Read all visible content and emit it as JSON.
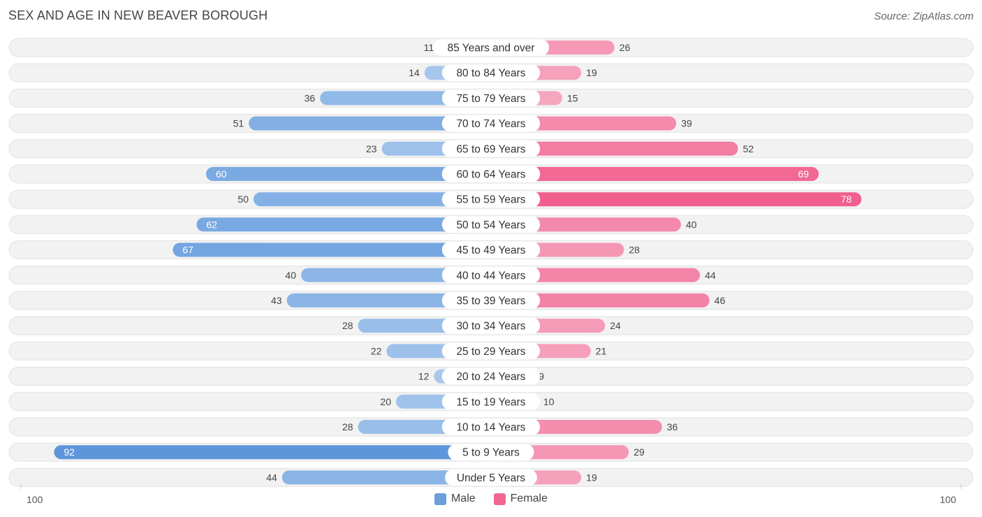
{
  "title": "SEX AND AGE IN NEW BEAVER BOROUGH",
  "source": "Source: ZipAtlas.com",
  "colors": {
    "male": "#6a9fdc",
    "female": "#f06792",
    "track": "#f1f1f1"
  },
  "chart_data": {
    "type": "bar",
    "orientation": "horizontal-diverging",
    "title": "SEX AND AGE IN NEW BEAVER BOROUGH",
    "categories": [
      "85 Years and over",
      "80 to 84 Years",
      "75 to 79 Years",
      "70 to 74 Years",
      "65 to 69 Years",
      "60 to 64 Years",
      "55 to 59 Years",
      "50 to 54 Years",
      "45 to 49 Years",
      "40 to 44 Years",
      "35 to 39 Years",
      "30 to 34 Years",
      "25 to 29 Years",
      "20 to 24 Years",
      "15 to 19 Years",
      "10 to 14 Years",
      "5 to 9 Years",
      "Under 5 Years"
    ],
    "series": [
      {
        "name": "Male",
        "values": [
          11,
          14,
          36,
          51,
          23,
          60,
          50,
          62,
          67,
          40,
          43,
          28,
          22,
          12,
          20,
          28,
          92,
          44
        ]
      },
      {
        "name": "Female",
        "values": [
          26,
          19,
          15,
          39,
          52,
          69,
          78,
          40,
          28,
          44,
          46,
          24,
          21,
          9,
          10,
          36,
          29,
          19
        ]
      }
    ],
    "xlim": [
      -100,
      100
    ],
    "axis_left_label": "100",
    "axis_right_label": "100",
    "legend": [
      "Male",
      "Female"
    ],
    "legend_position": "bottom-center"
  }
}
